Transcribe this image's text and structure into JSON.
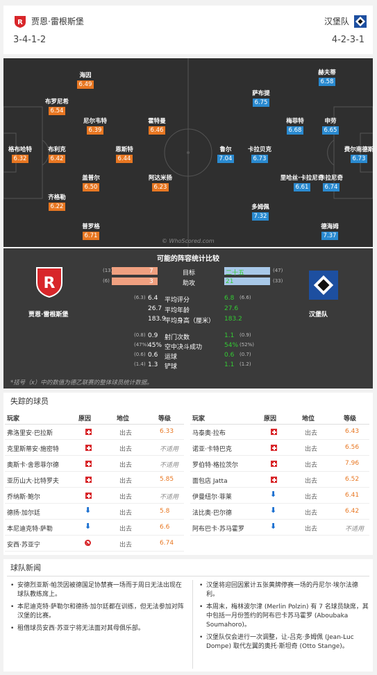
{
  "header": {
    "home_name": "贾恩·雷根斯堡",
    "home_form": "3-4-1-2",
    "away_name": "汉堡队",
    "away_form": "4-2-3-1"
  },
  "pitch": {
    "watermark": "© WhoScored.com",
    "home_players": [
      {
        "name": "海因",
        "rating": "6.49"
      },
      {
        "name": "布罗尼希",
        "rating": "6.54"
      },
      {
        "name": "尼尔韦特",
        "rating": "6.39"
      },
      {
        "name": "霍特曼",
        "rating": "6.46"
      },
      {
        "name": "格布哈特",
        "rating": "6.32"
      },
      {
        "name": "布利克",
        "rating": "6.42"
      },
      {
        "name": "恩斯特",
        "rating": "6.44"
      },
      {
        "name": "盖普尔",
        "rating": "6.50"
      },
      {
        "name": "阿达米扬",
        "rating": "6.23"
      },
      {
        "name": "齐格勒",
        "rating": "6.22"
      },
      {
        "name": "普罗格",
        "rating": "6.71"
      }
    ],
    "away_players": [
      {
        "name": "赫夫蒂",
        "rating": "6.58"
      },
      {
        "name": "萨布提",
        "rating": "6.75"
      },
      {
        "name": "梅菲特",
        "rating": "6.68"
      },
      {
        "name": "申劳",
        "rating": "6.65"
      },
      {
        "name": "鲁尔",
        "rating": "7.04"
      },
      {
        "name": "卡拉贝克",
        "rating": "6.73"
      },
      {
        "name": "费尔南德斯",
        "rating": "6.73"
      },
      {
        "name": "里哈丝·卡拉尼奇",
        "rating": "6.61"
      },
      {
        "name": "卡拉尼奇",
        "rating": "6.74"
      },
      {
        "name": "多姆佩",
        "rating": "7.32"
      },
      {
        "name": "德海姆",
        "rating": "7.37"
      }
    ]
  },
  "comparison": {
    "title": "可能的阵容统计比较",
    "home_name": "贾恩·雷根斯堡",
    "away_name": "汉堡队",
    "goals": {
      "label": "目标",
      "home_total": "(13)",
      "home": "7",
      "away": "二十五",
      "away_total": "(47)"
    },
    "assists": {
      "label": "助攻",
      "home_total": "(6)",
      "home": "3",
      "away": "21",
      "away_total": "(33)"
    },
    "rows1": [
      {
        "label": "平均评分",
        "home_total": "(6.3)",
        "home": "6.4",
        "away": "6.8",
        "away_total": "(6.6)"
      },
      {
        "label": "平均年龄",
        "home_total": "",
        "home": "26.7",
        "away": "27.6",
        "away_total": ""
      },
      {
        "label": "平均身高（厘米）",
        "home_total": "",
        "home": "183.9",
        "away": "183.2",
        "away_total": ""
      }
    ],
    "rows2": [
      {
        "label": "射门次数",
        "home_total": "(0.8)",
        "home": "0.9",
        "away": "1.1",
        "away_total": "(0.9)"
      },
      {
        "label": "空中决斗成功",
        "home_total": "(47%)",
        "home": "45%",
        "away": "54%",
        "away_total": "(52%)"
      },
      {
        "label": "运球",
        "home_total": "(0.6)",
        "home": "0.6",
        "away": "0.6",
        "away_total": "(0.7)"
      },
      {
        "label": "铲球",
        "home_total": "(1.4)",
        "home": "1.3",
        "away": "1.1",
        "away_total": "(1.2)"
      }
    ],
    "note": "*括号（x）中的数值为德乙联赛的整体球员统计数据。"
  },
  "missing": {
    "title": "失踪的球员",
    "headers": [
      "玩家",
      "原因",
      "地位",
      "等级"
    ],
    "home": [
      {
        "player": "弗洛里安·巴拉斯",
        "reason": "injury",
        "status": "出去",
        "rating": "6.33"
      },
      {
        "player": "克里斯蒂安·施密特",
        "reason": "injury",
        "status": "出去",
        "rating": "不适用"
      },
      {
        "player": "奥斯卡·舍恩菲尔德",
        "reason": "injury",
        "status": "出去",
        "rating": "不适用"
      },
      {
        "player": "亚历山大·比特罗夫",
        "reason": "injury",
        "status": "出去",
        "rating": "5.85"
      },
      {
        "player": "乔纳斯·鲍尔",
        "reason": "injury",
        "status": "出去",
        "rating": "不适用"
      },
      {
        "player": "德扬·加尔廷",
        "reason": "arrow",
        "status": "出去",
        "rating": "5.8"
      },
      {
        "player": "本尼迪克特·萨勒",
        "reason": "arrow",
        "status": "出去",
        "rating": "6.6"
      },
      {
        "player": "安西·苏亚宁",
        "reason": "ban",
        "status": "出去",
        "rating": "6.74"
      }
    ],
    "away": [
      {
        "player": "马泰奥·拉布",
        "reason": "injury",
        "status": "出去",
        "rating": "6.43"
      },
      {
        "player": "诺亚·卡特巴克",
        "reason": "injury",
        "status": "出去",
        "rating": "6.56"
      },
      {
        "player": "罗伯特·格拉茨尔",
        "reason": "injury",
        "status": "出去",
        "rating": "7.96"
      },
      {
        "player": "面包店 Jatta",
        "reason": "injury",
        "status": "出去",
        "rating": "6.52"
      },
      {
        "player": "伊曼纽尔·菲莱",
        "reason": "arrow",
        "status": "出去",
        "rating": "6.41"
      },
      {
        "player": "法比奥·巴尔德",
        "reason": "arrow",
        "status": "出去",
        "rating": "6.42"
      },
      {
        "player": "阿布巴卡·苏马霍罗",
        "reason": "arrow",
        "status": "出去",
        "rating": "不适用"
      }
    ]
  },
  "news": {
    "title": "球队新闻",
    "home": [
      "安德烈亚斯·帕茨因被德国足协禁赛一场而于周日无法出现在球队教练席上。",
      "本尼迪克特·萨勒尔和德扬·加尔廷都在训练，但无法参加对阵汉堡的比赛。",
      "租借球员安西·苏亚宁将无法面对其母俱乐部。"
    ],
    "away": [
      "汉堡将迎回因累计五张黄牌停赛一场的丹尼尔·埃尔法德利。",
      "本周末，梅林波尔津 (Merlin Polzin) 有 7 名球员缺席，其中包括一月份签约的阿布巴卡苏马霍罗 (Aboubaka Soumahoro)。",
      "汉堡队仅会进行一次调整，让-吕克·多姆佩 (Jean-Luc Dompe) 取代左翼的奥托·斯坦奇 (Otto Stange)。"
    ]
  },
  "colors": {
    "home_rating": "#e87722",
    "away_rating": "#2a8ad0",
    "home_bar": "#f0a080",
    "away_bar": "#a8c8e8",
    "away_accent": "#33cc33"
  }
}
